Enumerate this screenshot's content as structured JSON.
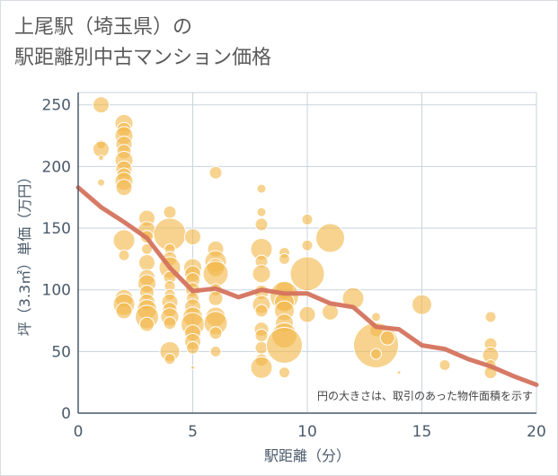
{
  "chart_data": {
    "type": "scatter",
    "title_line1": "上尾駅（埼玉県）の",
    "title_line2": "駅距離別中古マンション価格",
    "xlabel": "駅距離（分）",
    "ylabel": "坪（3.3㎡）単価（万円）",
    "xlim": [
      0,
      20
    ],
    "ylim": [
      0,
      260
    ],
    "xticks": [
      0,
      5,
      10,
      15,
      20
    ],
    "yticks": [
      0,
      50,
      100,
      150,
      200,
      250
    ],
    "annotation": "円の大きさは、取引のあった物件面積を示す",
    "colors": {
      "bubble": "#f2b84b",
      "bubble_edge": "#ffffff",
      "trend": "#d4735e",
      "grid": "#c9d3df",
      "axis": "#4a5a6a"
    },
    "scatter_points": [
      {
        "x": 1,
        "y": 250,
        "s": 9
      },
      {
        "x": 1,
        "y": 218,
        "s": 5
      },
      {
        "x": 1,
        "y": 214,
        "s": 9
      },
      {
        "x": 1,
        "y": 207,
        "s": 3
      },
      {
        "x": 1,
        "y": 187,
        "s": 4
      },
      {
        "x": 2,
        "y": 235,
        "s": 10
      },
      {
        "x": 2,
        "y": 230,
        "s": 8
      },
      {
        "x": 2,
        "y": 225,
        "s": 10
      },
      {
        "x": 2,
        "y": 218,
        "s": 9
      },
      {
        "x": 2,
        "y": 212,
        "s": 8
      },
      {
        "x": 2,
        "y": 205,
        "s": 10
      },
      {
        "x": 2,
        "y": 198,
        "s": 9
      },
      {
        "x": 2,
        "y": 193,
        "s": 8
      },
      {
        "x": 2,
        "y": 188,
        "s": 10
      },
      {
        "x": 2,
        "y": 183,
        "s": 9
      },
      {
        "x": 2,
        "y": 140,
        "s": 12
      },
      {
        "x": 2,
        "y": 128,
        "s": 6
      },
      {
        "x": 2,
        "y": 93,
        "s": 10
      },
      {
        "x": 2,
        "y": 88,
        "s": 12
      },
      {
        "x": 2,
        "y": 83,
        "s": 9
      },
      {
        "x": 3,
        "y": 158,
        "s": 9
      },
      {
        "x": 3,
        "y": 148,
        "s": 10
      },
      {
        "x": 3,
        "y": 143,
        "s": 7
      },
      {
        "x": 3,
        "y": 133,
        "s": 6
      },
      {
        "x": 3,
        "y": 122,
        "s": 9
      },
      {
        "x": 3,
        "y": 110,
        "s": 9
      },
      {
        "x": 3,
        "y": 105,
        "s": 10
      },
      {
        "x": 3,
        "y": 98,
        "s": 8
      },
      {
        "x": 3,
        "y": 90,
        "s": 9
      },
      {
        "x": 3,
        "y": 84,
        "s": 11
      },
      {
        "x": 3,
        "y": 78,
        "s": 13
      },
      {
        "x": 3,
        "y": 72,
        "s": 8
      },
      {
        "x": 4,
        "y": 163,
        "s": 7
      },
      {
        "x": 4,
        "y": 145,
        "s": 18
      },
      {
        "x": 4,
        "y": 133,
        "s": 6
      },
      {
        "x": 4,
        "y": 125,
        "s": 8
      },
      {
        "x": 4,
        "y": 118,
        "s": 12
      },
      {
        "x": 4,
        "y": 110,
        "s": 7
      },
      {
        "x": 4,
        "y": 103,
        "s": 6
      },
      {
        "x": 4,
        "y": 96,
        "s": 6
      },
      {
        "x": 4,
        "y": 90,
        "s": 9
      },
      {
        "x": 4,
        "y": 84,
        "s": 8
      },
      {
        "x": 4,
        "y": 78,
        "s": 10
      },
      {
        "x": 4,
        "y": 73,
        "s": 7
      },
      {
        "x": 4,
        "y": 50,
        "s": 11
      },
      {
        "x": 4,
        "y": 44,
        "s": 6
      },
      {
        "x": 5,
        "y": 143,
        "s": 9
      },
      {
        "x": 5,
        "y": 118,
        "s": 10
      },
      {
        "x": 5,
        "y": 113,
        "s": 9
      },
      {
        "x": 5,
        "y": 108,
        "s": 8
      },
      {
        "x": 5,
        "y": 100,
        "s": 8
      },
      {
        "x": 5,
        "y": 93,
        "s": 7
      },
      {
        "x": 5,
        "y": 86,
        "s": 9
      },
      {
        "x": 5,
        "y": 78,
        "s": 11
      },
      {
        "x": 5,
        "y": 72,
        "s": 13
      },
      {
        "x": 5,
        "y": 65,
        "s": 9
      },
      {
        "x": 5,
        "y": 58,
        "s": 9
      },
      {
        "x": 5,
        "y": 53,
        "s": 7
      },
      {
        "x": 5,
        "y": 37,
        "s": 2
      },
      {
        "x": 6,
        "y": 195,
        "s": 7
      },
      {
        "x": 6,
        "y": 133,
        "s": 9
      },
      {
        "x": 6,
        "y": 123,
        "s": 12
      },
      {
        "x": 6,
        "y": 118,
        "s": 10
      },
      {
        "x": 6,
        "y": 113,
        "s": 14
      },
      {
        "x": 6,
        "y": 100,
        "s": 7
      },
      {
        "x": 6,
        "y": 93,
        "s": 8
      },
      {
        "x": 6,
        "y": 78,
        "s": 11
      },
      {
        "x": 6,
        "y": 73,
        "s": 13
      },
      {
        "x": 6,
        "y": 65,
        "s": 7
      },
      {
        "x": 6,
        "y": 50,
        "s": 6
      },
      {
        "x": 8,
        "y": 182,
        "s": 5
      },
      {
        "x": 8,
        "y": 163,
        "s": 5
      },
      {
        "x": 8,
        "y": 153,
        "s": 7
      },
      {
        "x": 8,
        "y": 133,
        "s": 12
      },
      {
        "x": 8,
        "y": 123,
        "s": 7
      },
      {
        "x": 8,
        "y": 113,
        "s": 10
      },
      {
        "x": 8,
        "y": 98,
        "s": 8
      },
      {
        "x": 8,
        "y": 88,
        "s": 10
      },
      {
        "x": 8,
        "y": 83,
        "s": 7
      },
      {
        "x": 8,
        "y": 68,
        "s": 8
      },
      {
        "x": 8,
        "y": 63,
        "s": 7
      },
      {
        "x": 8,
        "y": 53,
        "s": 7
      },
      {
        "x": 8,
        "y": 43,
        "s": 7
      },
      {
        "x": 8,
        "y": 37,
        "s": 12
      },
      {
        "x": 9,
        "y": 130,
        "s": 6
      },
      {
        "x": 9,
        "y": 125,
        "s": 6
      },
      {
        "x": 9,
        "y": 100,
        "s": 10
      },
      {
        "x": 9,
        "y": 95,
        "s": 16
      },
      {
        "x": 9,
        "y": 90,
        "s": 11
      },
      {
        "x": 9,
        "y": 83,
        "s": 11
      },
      {
        "x": 9,
        "y": 73,
        "s": 10
      },
      {
        "x": 9,
        "y": 63,
        "s": 14
      },
      {
        "x": 9,
        "y": 55,
        "s": 20
      },
      {
        "x": 9,
        "y": 33,
        "s": 6
      },
      {
        "x": 10,
        "y": 157,
        "s": 6
      },
      {
        "x": 10,
        "y": 136,
        "s": 6
      },
      {
        "x": 10,
        "y": 113,
        "s": 19
      },
      {
        "x": 10,
        "y": 80,
        "s": 9
      },
      {
        "x": 11,
        "y": 142,
        "s": 16
      },
      {
        "x": 11,
        "y": 82,
        "s": 9
      },
      {
        "x": 12,
        "y": 93,
        "s": 12
      },
      {
        "x": 13,
        "y": 78,
        "s": 5
      },
      {
        "x": 13,
        "y": 67,
        "s": 7
      },
      {
        "x": 13,
        "y": 55,
        "s": 25
      },
      {
        "x": 13,
        "y": 48,
        "s": 6
      },
      {
        "x": 13.5,
        "y": 61,
        "s": 8
      },
      {
        "x": 14,
        "y": 33,
        "s": 2
      },
      {
        "x": 15,
        "y": 88,
        "s": 11
      },
      {
        "x": 16,
        "y": 39,
        "s": 6
      },
      {
        "x": 18,
        "y": 78,
        "s": 6
      },
      {
        "x": 18,
        "y": 56,
        "s": 7
      },
      {
        "x": 18,
        "y": 47,
        "s": 9
      },
      {
        "x": 18,
        "y": 39,
        "s": 6
      },
      {
        "x": 18,
        "y": 33,
        "s": 7
      }
    ],
    "trend_line": {
      "x": [
        0,
        1,
        2,
        3,
        4,
        5,
        6,
        7,
        8,
        9,
        10,
        11,
        12,
        13,
        14,
        15,
        16,
        17,
        18,
        19,
        20
      ],
      "y": [
        183,
        167,
        155,
        142,
        118,
        99,
        101,
        94,
        100,
        97,
        97,
        89,
        86,
        70,
        68,
        55,
        52,
        44,
        38,
        30,
        23
      ]
    }
  }
}
